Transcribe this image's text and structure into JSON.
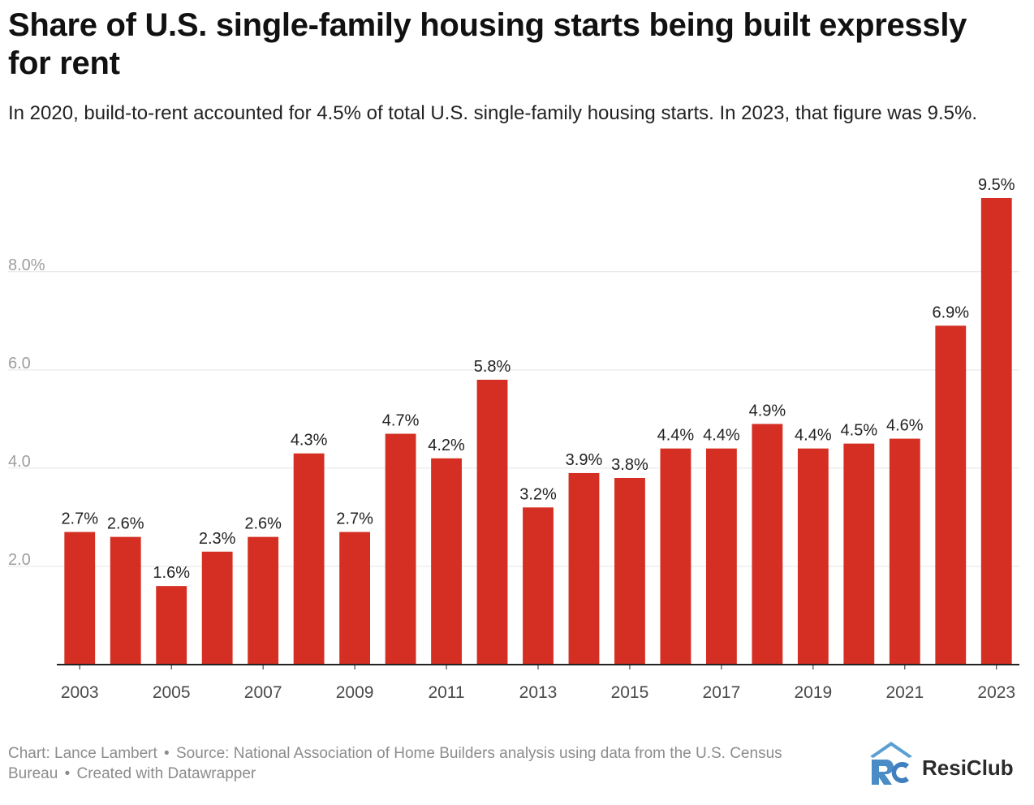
{
  "title": "Share of U.S. single-family housing starts being built expressly for rent",
  "subtitle": "In 2020, build-to-rent accounted for 4.5% of total U.S. single-family housing starts. In 2023, that figure was 9.5%.",
  "footer": {
    "chart_credit": "Chart: Lance Lambert",
    "separator": "•",
    "source": "Source: National Association of Home Builders analysis using data from the U.S. Census Bureau",
    "created_with": "Created with Datawrapper"
  },
  "logo": {
    "text": "ResiClub",
    "icon": "resiclub-logo-icon"
  },
  "colors": {
    "bar": "#d42f22",
    "grid": "#e4e4e4",
    "axis": "#222222"
  },
  "chart_data": {
    "type": "bar",
    "categories": [
      "2003",
      "2004",
      "2005",
      "2006",
      "2007",
      "2008",
      "2009",
      "2010",
      "2011",
      "2012",
      "2013",
      "2014",
      "2015",
      "2016",
      "2017",
      "2018",
      "2019",
      "2020",
      "2021",
      "2022",
      "2023"
    ],
    "values": [
      2.7,
      2.6,
      1.6,
      2.3,
      2.6,
      4.3,
      2.7,
      4.7,
      4.2,
      5.8,
      3.2,
      3.9,
      3.8,
      4.4,
      4.4,
      4.9,
      4.4,
      4.5,
      4.6,
      6.9,
      9.5
    ],
    "value_labels": [
      "2.7%",
      "2.6%",
      "1.6%",
      "2.3%",
      "2.6%",
      "4.3%",
      "2.7%",
      "4.7%",
      "4.2%",
      "5.8%",
      "3.2%",
      "3.9%",
      "3.8%",
      "4.4%",
      "4.4%",
      "4.9%",
      "4.4%",
      "4.5%",
      "4.6%",
      "6.9%",
      "9.5%"
    ],
    "x_tick_labels": [
      "2003",
      "",
      "2005",
      "",
      "2007",
      "",
      "2009",
      "",
      "2011",
      "",
      "2013",
      "",
      "2015",
      "",
      "2017",
      "",
      "2019",
      "",
      "2021",
      "",
      "2023"
    ],
    "y_ticks": [
      2,
      4,
      6,
      8
    ],
    "y_tick_labels": [
      "2.0",
      "4.0",
      "6.0",
      "8.0%"
    ],
    "ylim": [
      0,
      9.5
    ],
    "grid": true,
    "xlabel": "",
    "ylabel": ""
  }
}
